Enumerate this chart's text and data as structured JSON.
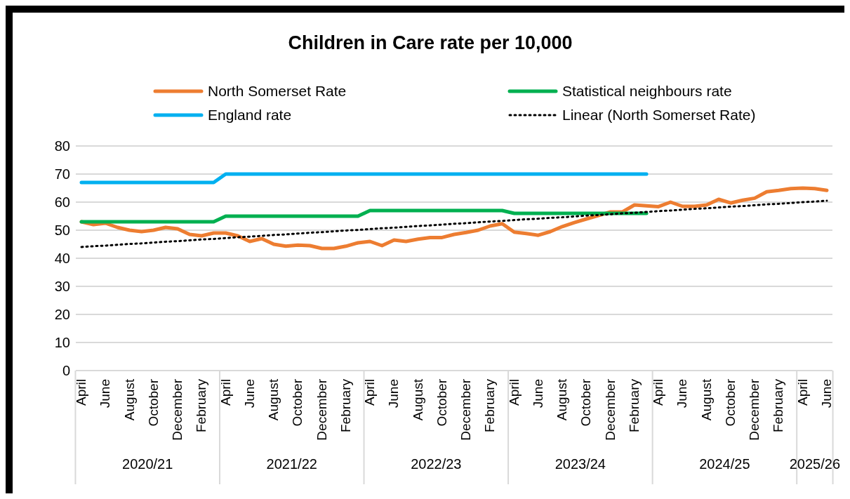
{
  "chart_data": {
    "type": "line",
    "title": "Children in Care rate per 10,000",
    "categories": [
      "April",
      null,
      "June",
      null,
      "August",
      null,
      "October",
      null,
      "December",
      null,
      "February",
      null,
      "April",
      null,
      "June",
      null,
      "August",
      null,
      "October",
      null,
      "December",
      null,
      "February",
      null,
      "April",
      null,
      "June",
      null,
      "August",
      null,
      "October",
      null,
      "December",
      null,
      "February",
      null,
      "April",
      null,
      "June",
      null,
      "August",
      null,
      "October",
      null,
      "December",
      null,
      "February",
      null,
      "April",
      null,
      "June",
      null,
      "August",
      null,
      "October",
      null,
      "December",
      null,
      "February",
      null,
      "April",
      null,
      "June"
    ],
    "series": [
      {
        "name": "North Somerset Rate",
        "color": "#ed7d31",
        "values": [
          53,
          52,
          52.5,
          51,
          50,
          49.5,
          50,
          51,
          50.5,
          48.5,
          48,
          49,
          49,
          48,
          46,
          47,
          45,
          44.3,
          44.7,
          44.5,
          43.5,
          43.5,
          44.3,
          45.5,
          46,
          44.5,
          46.5,
          46,
          46.8,
          47.4,
          47.4,
          48.5,
          49.2,
          50,
          51.5,
          52.3,
          49.3,
          48.8,
          48.2,
          49.5,
          51.3,
          52.7,
          54,
          55.2,
          56.5,
          56.5,
          59,
          58.7,
          58.4,
          60,
          58.5,
          58.5,
          59,
          61,
          59.7,
          60.7,
          61.4,
          63.7,
          64.2,
          64.8,
          65,
          64.8,
          64.2
        ]
      },
      {
        "name": "Statistical neighbours rate",
        "color": "#00b050",
        "values": [
          53,
          53,
          53,
          53,
          53,
          53,
          53,
          53,
          53,
          53,
          53,
          53,
          55,
          55,
          55,
          55,
          55,
          55,
          55,
          55,
          55,
          55,
          55,
          55,
          57,
          57,
          57,
          57,
          57,
          57,
          57,
          57,
          57,
          57,
          57,
          57,
          56,
          56,
          56,
          56,
          56,
          56,
          56,
          56,
          56,
          56,
          56,
          56,
          null,
          null,
          null,
          null,
          null,
          null,
          null,
          null,
          null,
          null,
          null,
          null,
          null,
          null,
          null
        ]
      },
      {
        "name": "England rate",
        "color": "#00b0f0",
        "values": [
          67,
          67,
          67,
          67,
          67,
          67,
          67,
          67,
          67,
          67,
          67,
          67,
          70,
          70,
          70,
          70,
          70,
          70,
          70,
          70,
          70,
          70,
          70,
          70,
          70,
          70,
          70,
          70,
          70,
          70,
          70,
          70,
          70,
          70,
          70,
          70,
          70,
          70,
          70,
          70,
          70,
          70,
          70,
          70,
          70,
          70,
          70,
          70,
          null,
          null,
          null,
          null,
          null,
          null,
          null,
          null,
          null,
          null,
          null,
          null,
          null,
          null,
          null
        ]
      },
      {
        "name": "Linear (North Somerset Rate)",
        "color": "#000000",
        "line_style": "dotted",
        "values": [
          44.0,
          44.3,
          44.5,
          44.8,
          45.1,
          45.3,
          45.6,
          45.9,
          46.1,
          46.4,
          46.7,
          46.9,
          47.2,
          47.5,
          47.7,
          48.0,
          48.3,
          48.5,
          48.8,
          49.1,
          49.3,
          49.6,
          49.9,
          50.1,
          50.4,
          50.7,
          50.9,
          51.2,
          51.5,
          51.7,
          52.0,
          52.3,
          52.5,
          52.8,
          53.1,
          53.3,
          53.6,
          53.9,
          54.1,
          54.4,
          54.6,
          54.9,
          55.2,
          55.4,
          55.7,
          56.0,
          56.2,
          56.5,
          56.8,
          57.0,
          57.3,
          57.6,
          57.8,
          58.1,
          58.4,
          58.6,
          58.9,
          59.2,
          59.4,
          59.7,
          60.0,
          60.2,
          60.5
        ]
      }
    ],
    "annotations": [
      "2020/21",
      "2021/22",
      "2022/23",
      "2023/24",
      "2024/25",
      "2025/26"
    ],
    "ylim": [
      0,
      80
    ],
    "yticks": [
      0,
      10,
      20,
      30,
      40,
      50,
      60,
      70,
      80
    ],
    "grid": "y",
    "legend": "top",
    "marker": "none",
    "line_style": "solid"
  }
}
